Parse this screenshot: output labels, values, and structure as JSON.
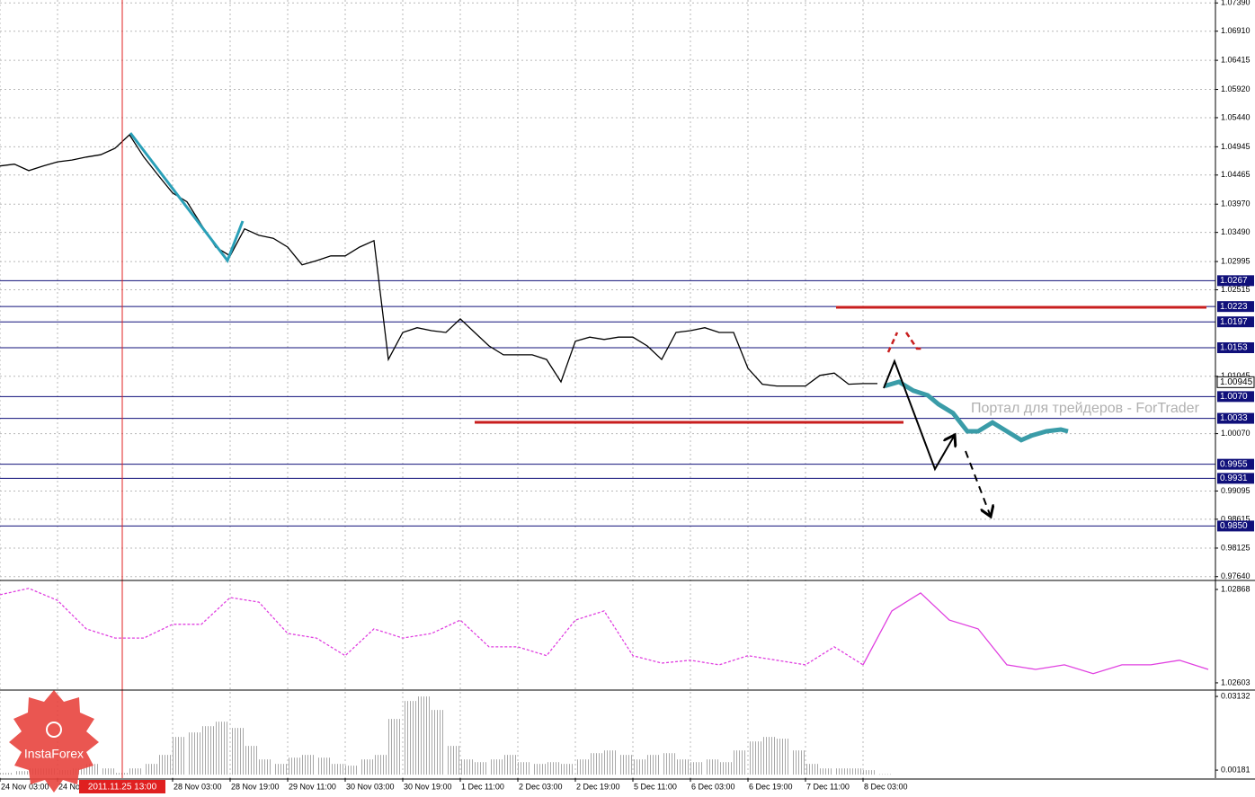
{
  "chart_data": [
    {
      "type": "line",
      "xlim": [
        0,
        338
      ],
      "xticks": [
        {
          "value": 0,
          "label": "24 Nov 03:00"
        },
        {
          "value": 16,
          "label": "24 No"
        },
        {
          "value": 48,
          "label": "28 Nov 03:00"
        },
        {
          "value": 64,
          "label": "28 Nov 19:00"
        },
        {
          "value": 80,
          "label": "29 Nov 11:00"
        },
        {
          "value": 96,
          "label": "30 Nov 03:00"
        },
        {
          "value": 112,
          "label": "30 Nov 19:00"
        },
        {
          "value": 128,
          "label": "1 Dec 11:00"
        },
        {
          "value": 144,
          "label": "2 Dec 03:00"
        },
        {
          "value": 160,
          "label": "2 Dec 19:00"
        },
        {
          "value": 176,
          "label": "5 Dec 11:00"
        },
        {
          "value": 192,
          "label": "6 Dec 03:00"
        },
        {
          "value": 208,
          "label": "6 Dec 19:00"
        },
        {
          "value": 224,
          "label": "7 Dec 11:00"
        },
        {
          "value": 240,
          "label": "8 Dec 03:00"
        }
      ],
      "cursor": {
        "value": 34,
        "label": "2011.11.25 13:00"
      },
      "ylim": [
        0.9759,
        1.0744
      ],
      "yticks": [
        {
          "value": 1.0739,
          "label": "1.07390"
        },
        {
          "value": 1.0691,
          "label": "1.06910"
        },
        1.06415,
        {
          "value": 1.0592,
          "label": "1.05920"
        },
        {
          "value": 1.0544,
          "label": "1.05440"
        },
        1.04945,
        1.04465,
        {
          "value": 1.0397,
          "label": "1.03970"
        },
        {
          "value": 1.0349,
          "label": "1.03490"
        },
        1.02995,
        1.02515,
        1.01045,
        {
          "value": 1.0007,
          "label": "1.00070"
        },
        0.99095,
        0.98615,
        0.98125,
        {
          "value": 0.9764,
          "label": "0.97640"
        }
      ],
      "grid": true,
      "levels": [
        1.0267,
        1.0223,
        1.0197,
        1.0153,
        {
          "value": 1.007,
          "label": "1.0070"
        },
        1.0033,
        0.9955,
        0.9931,
        {
          "value": 0.985,
          "label": "0.9850"
        }
      ],
      "level_color": "#10107a",
      "current_price": 1.00945,
      "watermark": "Портал для трейдеров - ForTrader",
      "logo": "InstaForex",
      "series": [
        {
          "color": "#000000",
          "x": [
            0,
            4,
            8,
            12,
            16,
            20,
            24,
            28,
            32,
            36,
            40,
            44,
            48,
            52,
            56,
            60,
            64,
            68,
            72,
            76,
            80,
            84,
            88,
            92,
            96,
            100,
            104,
            108,
            112,
            116,
            120,
            124,
            128,
            132,
            136,
            140,
            144,
            148,
            152,
            156,
            160,
            164,
            168,
            172,
            176,
            180,
            184,
            188,
            192,
            196,
            200,
            204,
            208,
            212,
            216,
            220,
            224,
            228,
            232,
            236,
            240,
            244
          ],
          "values": [
            1.0462,
            1.0465,
            1.0454,
            1.0462,
            1.0469,
            1.0472,
            1.0477,
            1.0481,
            1.0492,
            1.0515,
            1.0477,
            1.0446,
            1.0416,
            1.0401,
            1.0362,
            1.0324,
            1.0309,
            1.0355,
            1.0344,
            1.0339,
            1.0324,
            1.0294,
            1.0301,
            1.0309,
            1.0309,
            1.0324,
            1.0335,
            1.0133,
            1.0179,
            1.0187,
            1.0182,
            1.0179,
            1.0202,
            1.0179,
            1.0156,
            1.0141,
            1.0141,
            1.0141,
            1.0133,
            1.0095,
            1.0164,
            1.0171,
            1.0167,
            1.0171,
            1.0171,
            1.0156,
            1.0133,
            1.0179,
            1.0182,
            1.0187,
            1.0179,
            1.0179,
            1.0118,
            1.0091,
            1.0088,
            1.0088,
            1.0088,
            1.0106,
            1.011,
            1.0091,
            1.0092,
            1.0092
          ]
        },
        {
          "color": "#3a9ca8",
          "x": [
            246,
            250,
            254,
            258,
            261,
            265,
            269,
            272,
            276,
            280,
            284,
            287,
            291,
            295,
            297
          ],
          "values": [
            1.0088,
            1.0095,
            1.008,
            1.0072,
            1.0057,
            1.0042,
            1.0011,
            1.0011,
            1.0026,
            1.0011,
            0.9996,
            1.0004,
            1.0011,
            1.0014,
            1.0011
          ]
        }
      ]
    },
    {
      "type": "line",
      "ylim": [
        1.02585,
        1.02891
      ],
      "yticks": [
        1.02868,
        1.02603
      ],
      "series": [
        {
          "color": "#e040e0",
          "style": "dashed",
          "x": [
            0,
            8,
            16,
            24,
            32,
            40,
            48,
            56,
            64,
            72,
            80,
            88,
            96,
            104,
            112,
            120,
            128,
            136,
            144,
            152,
            160,
            168,
            176,
            184,
            192,
            200,
            208,
            216,
            224,
            232,
            240,
            248,
            256,
            264,
            272,
            280,
            288,
            296,
            304,
            312,
            320,
            328,
            336
          ],
          "values": [
            1.02853,
            1.02871,
            1.02837,
            1.02756,
            1.0273,
            1.0273,
            1.02769,
            1.02769,
            1.02845,
            1.02832,
            1.02743,
            1.0273,
            1.0268,
            1.02756,
            1.0273,
            1.02743,
            1.02781,
            1.02705,
            1.02705,
            1.0268,
            1.02781,
            1.02807,
            1.0268,
            1.02659,
            1.02667,
            1.02654,
            1.0268,
            1.02667,
            1.02654,
            1.02705,
            1.02654,
            null,
            null,
            null,
            null,
            null,
            null,
            null,
            null,
            null,
            null,
            null,
            null
          ]
        },
        {
          "color": "#e040e0",
          "style": "solid",
          "x": [
            0,
            8,
            16,
            24,
            32,
            40,
            48,
            56,
            64,
            72,
            80,
            88,
            96,
            104,
            112,
            120,
            128,
            136,
            144,
            152,
            160,
            168,
            176,
            184,
            192,
            200,
            208,
            216,
            224,
            232,
            240,
            248,
            256,
            264,
            272,
            280,
            288,
            296,
            304,
            312,
            320,
            328,
            336
          ],
          "values": [
            null,
            null,
            null,
            null,
            null,
            null,
            null,
            null,
            null,
            null,
            null,
            null,
            null,
            null,
            null,
            null,
            null,
            null,
            null,
            null,
            null,
            null,
            null,
            null,
            null,
            null,
            null,
            null,
            null,
            null,
            1.02654,
            1.02807,
            1.02858,
            1.02781,
            1.02756,
            1.02654,
            1.02641,
            1.02654,
            1.02629,
            1.02654,
            1.02654,
            1.02667,
            1.02641
          ]
        }
      ]
    },
    {
      "type": "bar",
      "ylim": [
        -0.0014,
        0.0335
      ],
      "yticks": [
        0.03132,
        0.00181
      ],
      "color": "#a8a8a8",
      "x": [
        0,
        4,
        8,
        12,
        16,
        20,
        24,
        28,
        32,
        36,
        40,
        44,
        48,
        52,
        56,
        60,
        64,
        68,
        72,
        76,
        80,
        84,
        88,
        92,
        96,
        100,
        104,
        108,
        112,
        116,
        120,
        124,
        128,
        132,
        136,
        140,
        144,
        148,
        152,
        156,
        160,
        164,
        168,
        172,
        176,
        180,
        184,
        188,
        192,
        196,
        200,
        204,
        208,
        212,
        216,
        220,
        224,
        228,
        232,
        236,
        240,
        244
      ],
      "values": [
        0.0007,
        0.0014,
        0.0025,
        0.0025,
        0.0018,
        0.0025,
        0.0043,
        0.0025,
        0.0007,
        0.0025,
        0.0043,
        0.0079,
        0.0151,
        0.0169,
        0.0194,
        0.0212,
        0.0187,
        0.0115,
        0.0061,
        0.0043,
        0.0068,
        0.0079,
        0.0068,
        0.0043,
        0.0036,
        0.0061,
        0.0079,
        0.0223,
        0.0295,
        0.0313,
        0.0259,
        0.0115,
        0.0061,
        0.005,
        0.0061,
        0.0079,
        0.005,
        0.0043,
        0.005,
        0.0043,
        0.0061,
        0.0086,
        0.0097,
        0.0079,
        0.0061,
        0.0079,
        0.0086,
        0.0061,
        0.005,
        0.0061,
        0.005,
        0.0097,
        0.0133,
        0.0151,
        0.0144,
        0.0097,
        0.0043,
        0.0025,
        0.0025,
        0.0025,
        0.0018,
        0.0002
      ]
    }
  ]
}
